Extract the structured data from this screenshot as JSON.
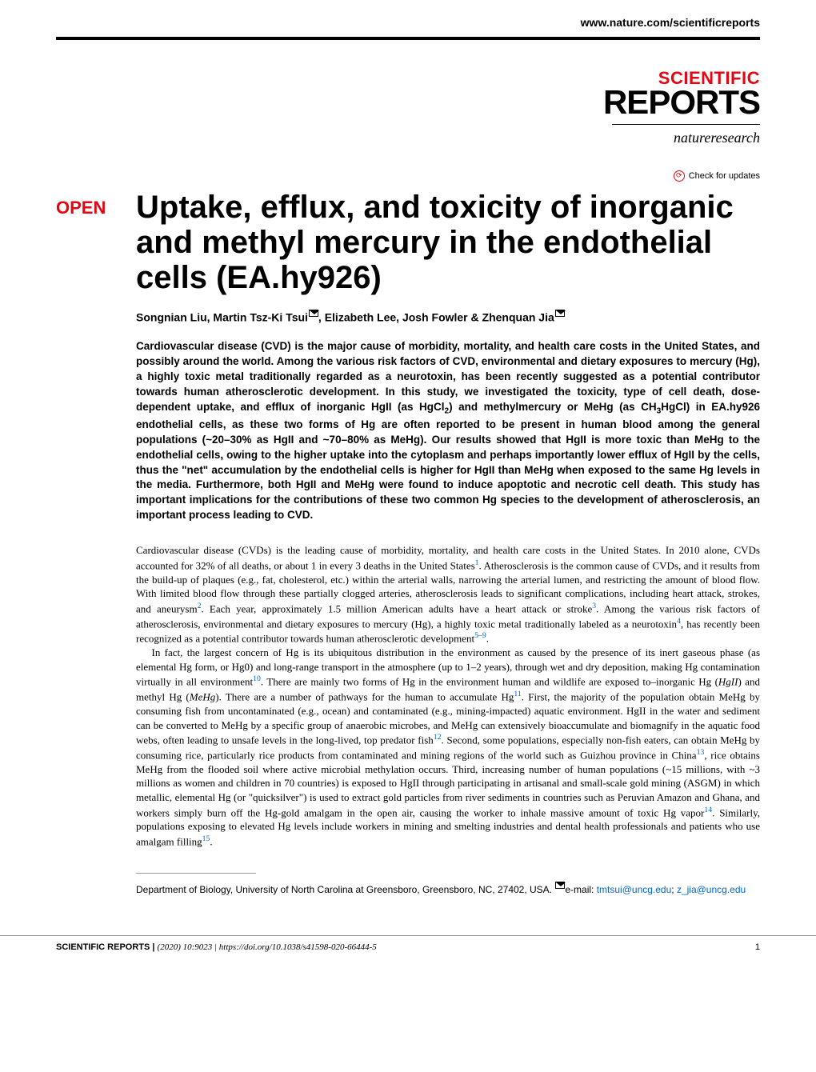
{
  "header": {
    "url": "www.nature.com/scientificreports"
  },
  "journal": {
    "scientific": "SCIENTIFIC",
    "reports": "REPORTS",
    "natureresearch": "natureresearch"
  },
  "updates": {
    "label": "Check for updates"
  },
  "badge": "OPEN",
  "title": "Uptake, efflux, and toxicity of inorganic and methyl mercury in the endothelial cells (EA.hy926)",
  "authors_html": "Songnian Liu, Martin Tsz-Ki Tsui<span class=\"mail-icon\" data-name=\"mail-icon\" data-interactable=\"false\"></span>, Elizabeth Lee, Josh Fowler & Zhenquan Jia<span class=\"mail-icon\" data-name=\"mail-icon\" data-interactable=\"false\"></span>",
  "abstract_html": "Cardiovascular disease (CVD) is the major cause of morbidity, mortality, and health care costs in the United States, and possibly around the world. Among the various risk factors of CVD, environmental and dietary exposures to mercury (Hg), a highly toxic metal traditionally regarded as a neurotoxin, has been recently suggested as a potential contributor towards human atherosclerotic development. In this study, we investigated the toxicity, type of cell death, dose-dependent uptake, and efflux of inorganic HgII (as HgCl<sub>2</sub>) and methylmercury or MeHg (as CH<sub>3</sub>HgCl) in EA.hy926 endothelial cells, as these two forms of Hg are often reported to be present in human blood among the general populations (~20–30% as HgII and ~70–80% as MeHg). Our results showed that HgII is more toxic than MeHg to the endothelial cells, owing to the higher uptake into the cytoplasm and perhaps importantly lower efflux of HgII by the cells, thus the \"net\" accumulation by the endothelial cells is higher for HgII than MeHg when exposed to the same Hg levels in the media. Furthermore, both HgII and MeHg were found to induce apoptotic and necrotic cell death. This study has important implications for the contributions of these two common Hg species to the development of atherosclerosis, an important process leading to CVD.",
  "body_paragraphs_html": [
    "Cardiovascular disease (CVDs) is the leading cause of morbidity, mortality, and health care costs in the United States. In 2010 alone, CVDs accounted for 32% of all deaths, or about 1 in every 3 deaths in the United States<span class=\"ref-sup\">1</span>. Atherosclerosis is the common cause of CVDs, and it results from the build-up of plaques (e.g., fat, cholesterol, etc.) within the arterial walls, narrowing the arterial lumen, and restricting the amount of blood flow. With limited blood flow through these partially clogged arteries, atherosclerosis leads to significant complications, including heart attack, strokes, and aneurysm<span class=\"ref-sup\">2</span>. Each year, approximately 1.5 million American adults have a heart attack or stroke<span class=\"ref-sup\">3</span>. Among the various risk factors of atherosclerosis, environmental and dietary exposures to mercury (Hg), a highly toxic metal traditionally labeled as a neurotoxin<span class=\"ref-sup\">4</span>, has recently been recognized as a potential contributor towards human atherosclerotic development<span class=\"ref-sup\">5–9</span>.",
    "In fact, the largest concern of Hg is its ubiquitous distribution in the environment as caused by the presence of its inert gaseous phase (as elemental Hg form, or Hg0) and long-range transport in the atmosphere (up to 1–2 years), through wet and dry deposition, making Hg contamination virtually in all environment<span class=\"ref-sup\">10</span>. There are mainly two forms of Hg in the environment human and wildlife are exposed to–inorganic Hg (<i>HgII</i>) and methyl Hg (<i>MeHg</i>). There are a number of pathways for the human to accumulate Hg<span class=\"ref-sup\">11</span>. First, the majority of the population obtain MeHg by consuming fish from uncontaminated (e.g., ocean) and contaminated (e.g., mining-impacted) aquatic environment. HgII in the water and sediment can be converted to MeHg by a specific group of anaerobic microbes, and MeHg can extensively bioaccumulate and biomagnify in the aquatic food webs, often leading to unsafe levels in the long-lived, top predator fish<span class=\"ref-sup\">12</span>. Second, some populations, especially non-fish eaters, can obtain MeHg by consuming rice, particularly rice products from contaminated and mining regions of the world such as Guizhou province in China<span class=\"ref-sup\">13</span>, rice obtains MeHg from the flooded soil where active microbial methylation occurs. Third, increasing number of human populations (~15 millions, with ~3 millions as women and children in 70 countries) is exposed to HgII through participating in artisanal and small-scale gold mining (ASGM) in which metallic, elemental Hg (or \"quicksilver\") is used to extract gold particles from river sediments in countries such as Peruvian Amazon and Ghana, and workers simply burn off the Hg-gold amalgam in the open air, causing the worker to inhale massive amount of toxic Hg vapor<span class=\"ref-sup\">14</span>. Similarly, populations exposing to elevated Hg levels include workers in mining and smelting industries and dental health professionals and patients who use amalgam filling<span class=\"ref-sup\">15</span>."
  ],
  "affiliation_html": "Department of Biology, University of North Carolina at Greensboro, Greensboro, NC, 27402, USA. <span class=\"mail-icon\" data-name=\"mail-icon\" data-interactable=\"false\"></span>e-mail: <a href=\"#\">tmtsui@uncg.edu</a>; <a href=\"#\">z_jia@uncg.edu</a>",
  "footer": {
    "journal": "SCIENTIFIC REPORTS |",
    "citation": "(2020) 10:9023 | https://doi.org/10.1038/s41598-020-66444-5",
    "page": "1"
  },
  "colors": {
    "brand_red": "#e30613",
    "link_blue": "#0066cc",
    "text": "#000000",
    "background": "#ffffff",
    "divider": "#999999"
  },
  "typography": {
    "title_fontsize": 40,
    "body_fontsize": 13,
    "abstract_fontsize": 13.5,
    "authors_fontsize": 14,
    "footer_fontsize": 11
  }
}
